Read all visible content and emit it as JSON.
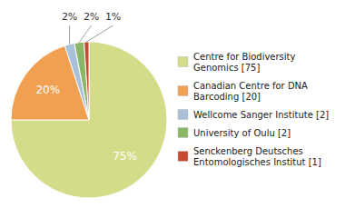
{
  "chart_data": {
    "type": "pie",
    "categories": [
      "Centre for Biodiversity\nGenomics [75]",
      "Canadian Centre for DNA\nBarcoding [20]",
      "Wellcome Sanger Institute [2]",
      "University of Oulu [2]",
      "Senckenberg Deutsches\nEntomologisches Institut [1]"
    ],
    "values": [
      75,
      20,
      2,
      2,
      1
    ],
    "value_labels": [
      "75%",
      "20%",
      "2%",
      "2%",
      "1%"
    ],
    "colors": [
      "#d4dc8a",
      "#f0a050",
      "#a8c0d8",
      "#88b868",
      "#c84830"
    ],
    "data_labels": true,
    "legend": "right"
  }
}
